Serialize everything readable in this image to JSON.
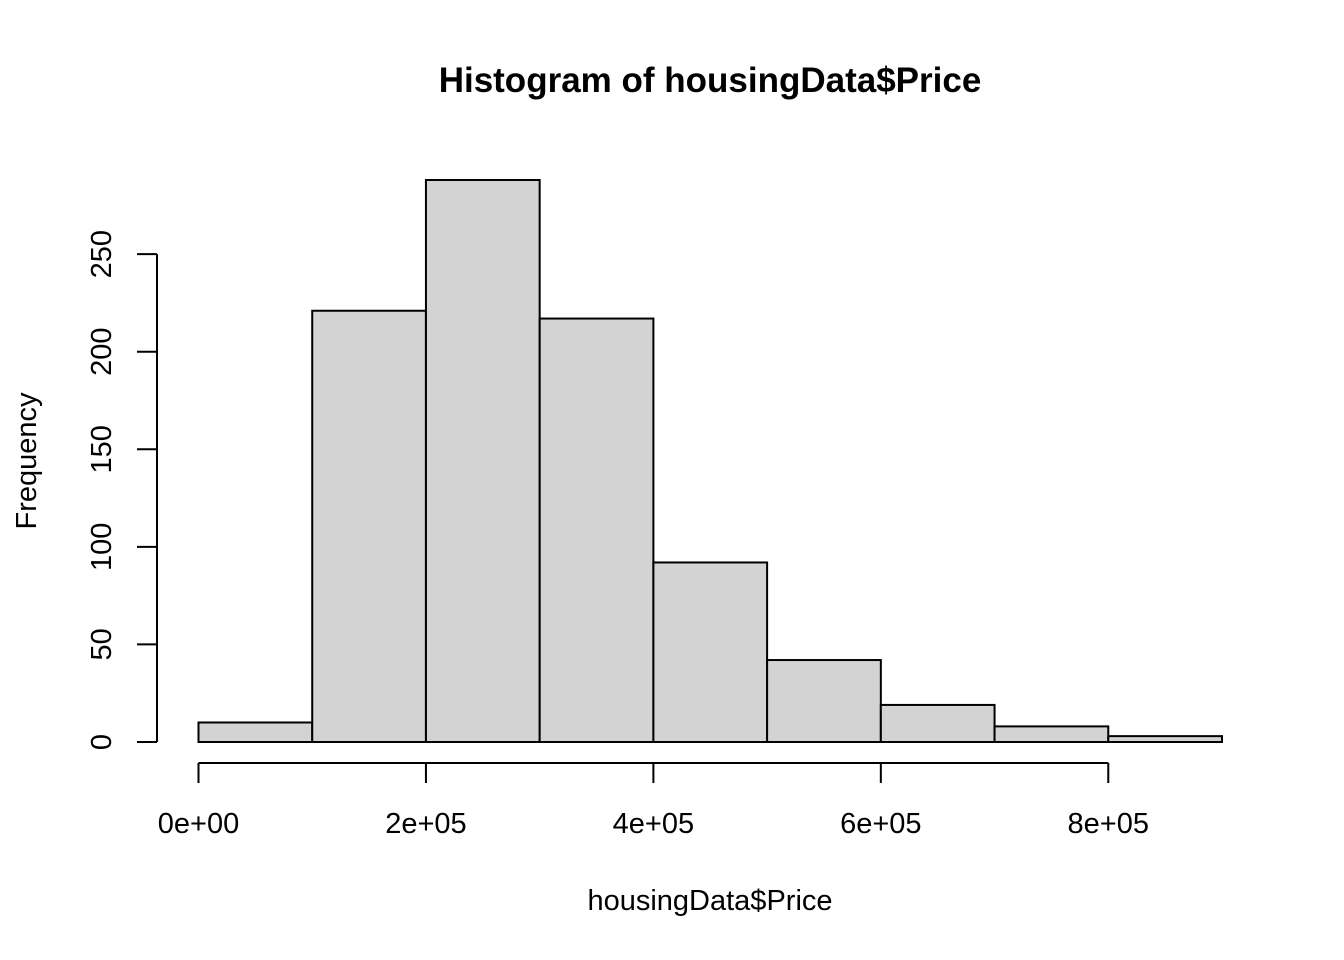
{
  "chart_data": {
    "type": "bar",
    "title": "Histogram of housingData$Price",
    "xlabel": "housingData$Price",
    "ylabel": "Frequency",
    "bin_edges": [
      0,
      100000,
      200000,
      300000,
      400000,
      500000,
      600000,
      700000,
      800000,
      900000
    ],
    "values": [
      10,
      221,
      288,
      217,
      92,
      42,
      19,
      8,
      3
    ],
    "xlim": [
      0,
      900000
    ],
    "ylim": [
      0,
      288
    ],
    "x_ticks": [
      0,
      200000,
      400000,
      600000,
      800000
    ],
    "x_tick_labels": [
      "0e+00",
      "2e+05",
      "4e+05",
      "6e+05",
      "8e+05"
    ],
    "y_ticks": [
      0,
      50,
      100,
      150,
      200,
      250
    ],
    "y_tick_labels": [
      "0",
      "50",
      "100",
      "150",
      "200",
      "250"
    ],
    "bar_color": "#d3d3d3",
    "edge_color": "#000000",
    "grid": false,
    "legend": "none"
  }
}
